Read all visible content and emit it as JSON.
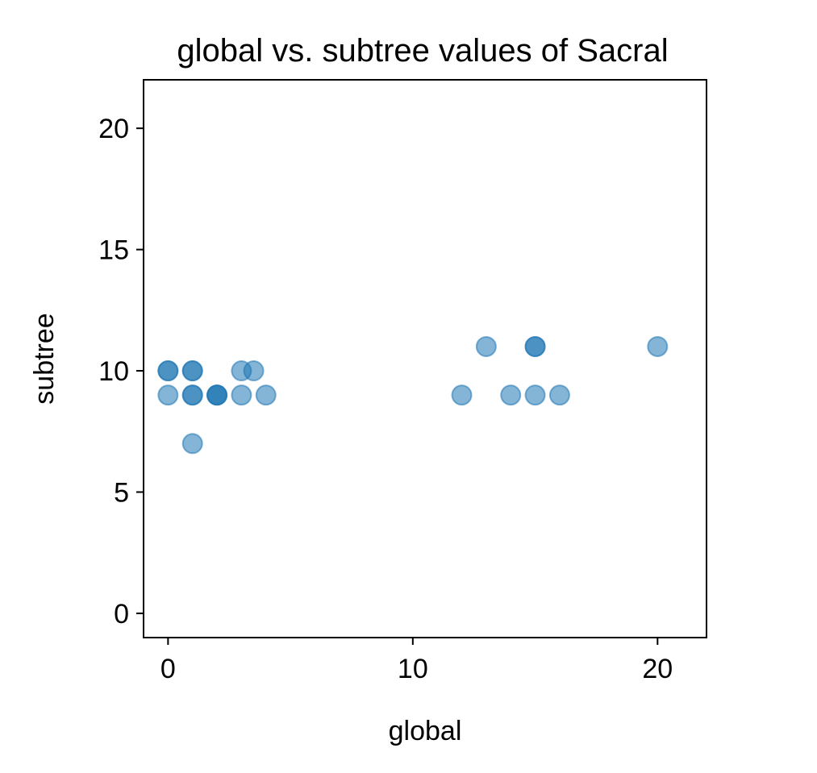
{
  "chart_data": {
    "type": "scatter",
    "title": "global vs. subtree values of Sacral",
    "xlabel": "global",
    "ylabel": "subtree",
    "xlim": [
      -1,
      22
    ],
    "ylim": [
      -1,
      22
    ],
    "x_ticks": [
      0,
      10,
      20
    ],
    "y_ticks": [
      0,
      5,
      10,
      15,
      20
    ],
    "grid": false,
    "legend": "none",
    "marker_color": "#1f77b4",
    "marker_alpha": 0.55,
    "points": [
      {
        "x": 0,
        "y": 10
      },
      {
        "x": 0,
        "y": 10
      },
      {
        "x": 0,
        "y": 9
      },
      {
        "x": 1,
        "y": 10
      },
      {
        "x": 1,
        "y": 10
      },
      {
        "x": 1,
        "y": 9
      },
      {
        "x": 1,
        "y": 9
      },
      {
        "x": 1,
        "y": 7
      },
      {
        "x": 2,
        "y": 9
      },
      {
        "x": 2,
        "y": 9
      },
      {
        "x": 2,
        "y": 9
      },
      {
        "x": 3,
        "y": 10
      },
      {
        "x": 3,
        "y": 9
      },
      {
        "x": 3.5,
        "y": 10
      },
      {
        "x": 4,
        "y": 9
      },
      {
        "x": 12,
        "y": 9
      },
      {
        "x": 13,
        "y": 11
      },
      {
        "x": 14,
        "y": 9
      },
      {
        "x": 15,
        "y": 11
      },
      {
        "x": 15,
        "y": 11
      },
      {
        "x": 15,
        "y": 9
      },
      {
        "x": 16,
        "y": 9
      },
      {
        "x": 20,
        "y": 11
      }
    ]
  }
}
